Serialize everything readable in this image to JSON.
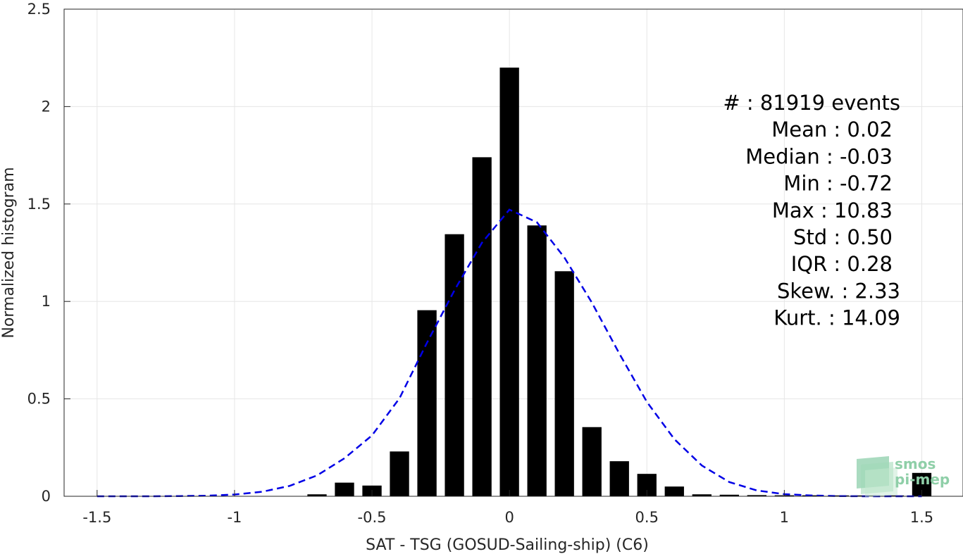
{
  "chart_data": {
    "type": "bar",
    "xlabel": "SAT - TSG (GOSUD-Sailing-ship) (C6)",
    "ylabel": "Normalized histogram",
    "xlim": [
      -1.62,
      1.65
    ],
    "ylim": [
      0,
      2.5
    ],
    "x_ticks": [
      -1.5,
      -1,
      -0.5,
      0,
      0.5,
      1,
      1.5
    ],
    "x_tick_labels": [
      "-1.5",
      "-1",
      "-0.5",
      "0",
      "0.5",
      "1",
      "1.5"
    ],
    "y_ticks": [
      0,
      0.5,
      1,
      1.5,
      2,
      2.5
    ],
    "y_tick_labels": [
      "0",
      "0.5",
      "1",
      "1.5",
      "2",
      "2.5"
    ],
    "grid": true,
    "bar_width": 0.07,
    "bar_color": "#000000",
    "series": [
      {
        "type": "bar",
        "x": [
          -1.5,
          -1.4,
          -1.3,
          -1.2,
          -1.1,
          -1.0,
          -0.9,
          -0.8,
          -0.7,
          -0.6,
          -0.5,
          -0.4,
          -0.3,
          -0.2,
          -0.1,
          0.0,
          0.1,
          0.2,
          0.3,
          0.4,
          0.5,
          0.6,
          0.7,
          0.8,
          0.9,
          1.0,
          1.1,
          1.2,
          1.3,
          1.4,
          1.5
        ],
        "values": [
          0,
          0,
          0,
          0,
          0,
          0,
          0,
          0,
          0.01,
          0.07,
          0.055,
          0.23,
          0.955,
          1.345,
          1.74,
          2.2,
          1.39,
          1.155,
          0.355,
          0.18,
          0.115,
          0.05,
          0.01,
          0.008,
          0.006,
          0.005,
          0.005,
          0.004,
          0.004,
          0.004,
          0.12
        ]
      },
      {
        "type": "line",
        "style": "dashed",
        "color": "#0000e6",
        "x": [
          -1.5,
          -1.4,
          -1.3,
          -1.2,
          -1.1,
          -1.0,
          -0.9,
          -0.8,
          -0.7,
          -0.6,
          -0.5,
          -0.4,
          -0.3,
          -0.2,
          -0.1,
          0.0,
          0.1,
          0.2,
          0.3,
          0.4,
          0.5,
          0.6,
          0.7,
          0.8,
          0.9,
          1.0,
          1.1,
          1.2,
          1.3,
          1.4,
          1.5
        ],
        "values": [
          0,
          0,
          0,
          0.001,
          0.003,
          0.009,
          0.023,
          0.053,
          0.107,
          0.195,
          0.312,
          0.503,
          0.788,
          1.057,
          1.301,
          1.471,
          1.406,
          1.225,
          0.994,
          0.732,
          0.484,
          0.293,
          0.158,
          0.073,
          0.03,
          0.011,
          0.004,
          0.001,
          0,
          0,
          0
        ]
      }
    ],
    "annotation_lines": [
      "#  : 81919 events",
      "Mean : 0.02",
      "Median : -0.03",
      "Min : -0.72",
      "Max : 10.83",
      "Std : 0.50",
      "IQR : 0.28",
      "Skew. : 2.33",
      "Kurt. : 14.09"
    ],
    "logo": [
      "smos",
      "pi-mep"
    ]
  }
}
